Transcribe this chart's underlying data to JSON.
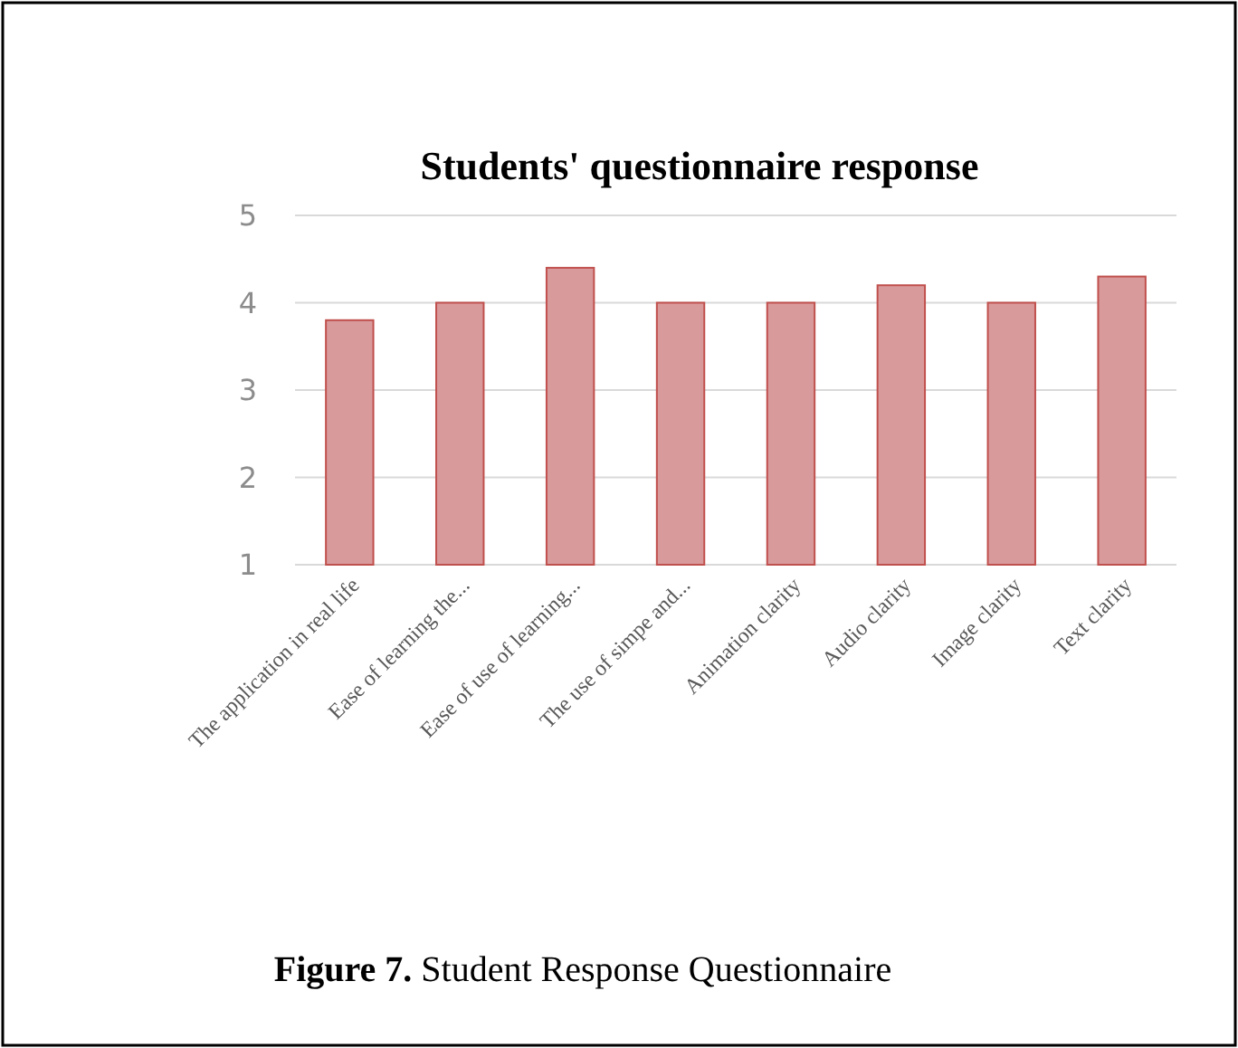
{
  "chart_data": {
    "type": "bar",
    "title": "Students' questionnaire response",
    "categories": [
      "The application in real life",
      "Ease of learning the...",
      "Ease of use of learning...",
      "The use of simpe and...",
      "Animation clarity",
      "Audio clarity",
      "Image clarity",
      "Text clarity"
    ],
    "values": [
      3.8,
      4,
      4.4,
      4,
      4,
      4.2,
      4,
      4.3
    ],
    "color": "#d99a9c",
    "ylim": [
      1,
      5
    ],
    "yticks": [
      1,
      2,
      3,
      4,
      5
    ],
    "grid": "y",
    "annotations": [
      "Figure 7. Student Response Questionnaire"
    ]
  }
}
